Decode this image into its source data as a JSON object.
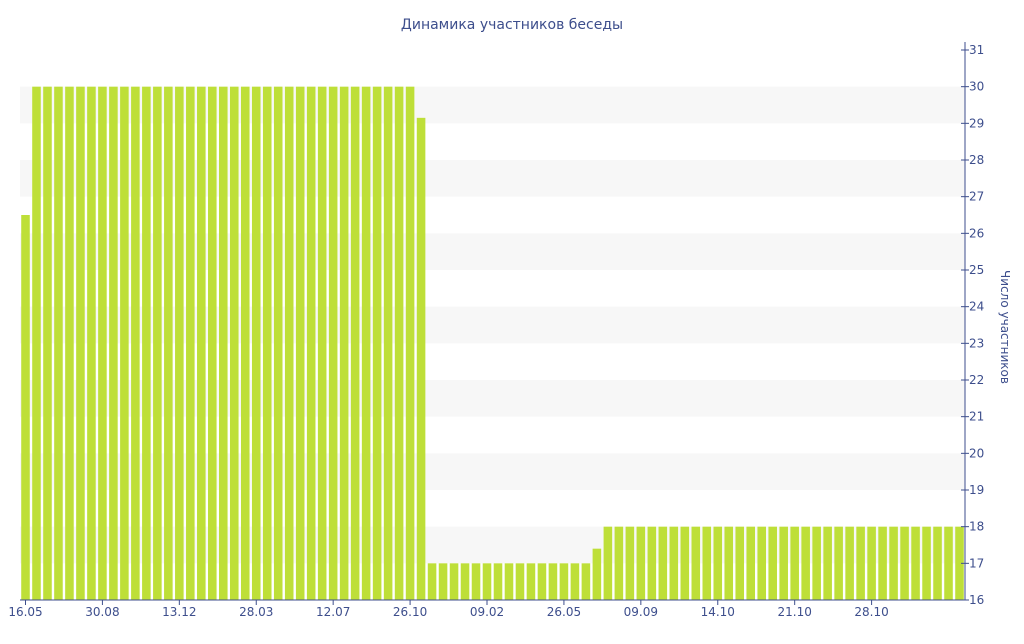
{
  "chart_data": {
    "type": "bar",
    "title": "Динамика участников беседы",
    "xlabel": "",
    "ylabel": "Число участников",
    "ylim": [
      16,
      31
    ],
    "yticks": [
      16,
      17,
      18,
      19,
      20,
      21,
      22,
      23,
      24,
      25,
      26,
      27,
      28,
      29,
      30,
      31
    ],
    "y_axis_side": "right",
    "grid": "alternating horizontal bands",
    "x_tick_labels": [
      "16.05",
      "30.08",
      "13.12",
      "28.03",
      "12.07",
      "26.10",
      "09.02",
      "26.05",
      "09.09",
      "14.10",
      "21.10",
      "28.10"
    ],
    "bar_color": "#bedf38",
    "band_color": "#f7f7f7",
    "text_color": "#3d4e8c",
    "series": [
      {
        "values": [
          26.5,
          30,
          30,
          30,
          30,
          30,
          30,
          30,
          30,
          30,
          30,
          30,
          30,
          30,
          30,
          30,
          30,
          30,
          30,
          30,
          30,
          30,
          30,
          30,
          30,
          30,
          30,
          30,
          30,
          30,
          30,
          30,
          30,
          30,
          30,
          30,
          29.15,
          17,
          17,
          17,
          17,
          17,
          17,
          17,
          17,
          17,
          17,
          17,
          17,
          17,
          17,
          17,
          17.4,
          18,
          18,
          18,
          18,
          18,
          18,
          18,
          18,
          18,
          18,
          18,
          18,
          18,
          18,
          18,
          18,
          18,
          18,
          18,
          18,
          18,
          18,
          18,
          18,
          18,
          18,
          18,
          18,
          18,
          18,
          18,
          18,
          18
        ]
      }
    ]
  }
}
